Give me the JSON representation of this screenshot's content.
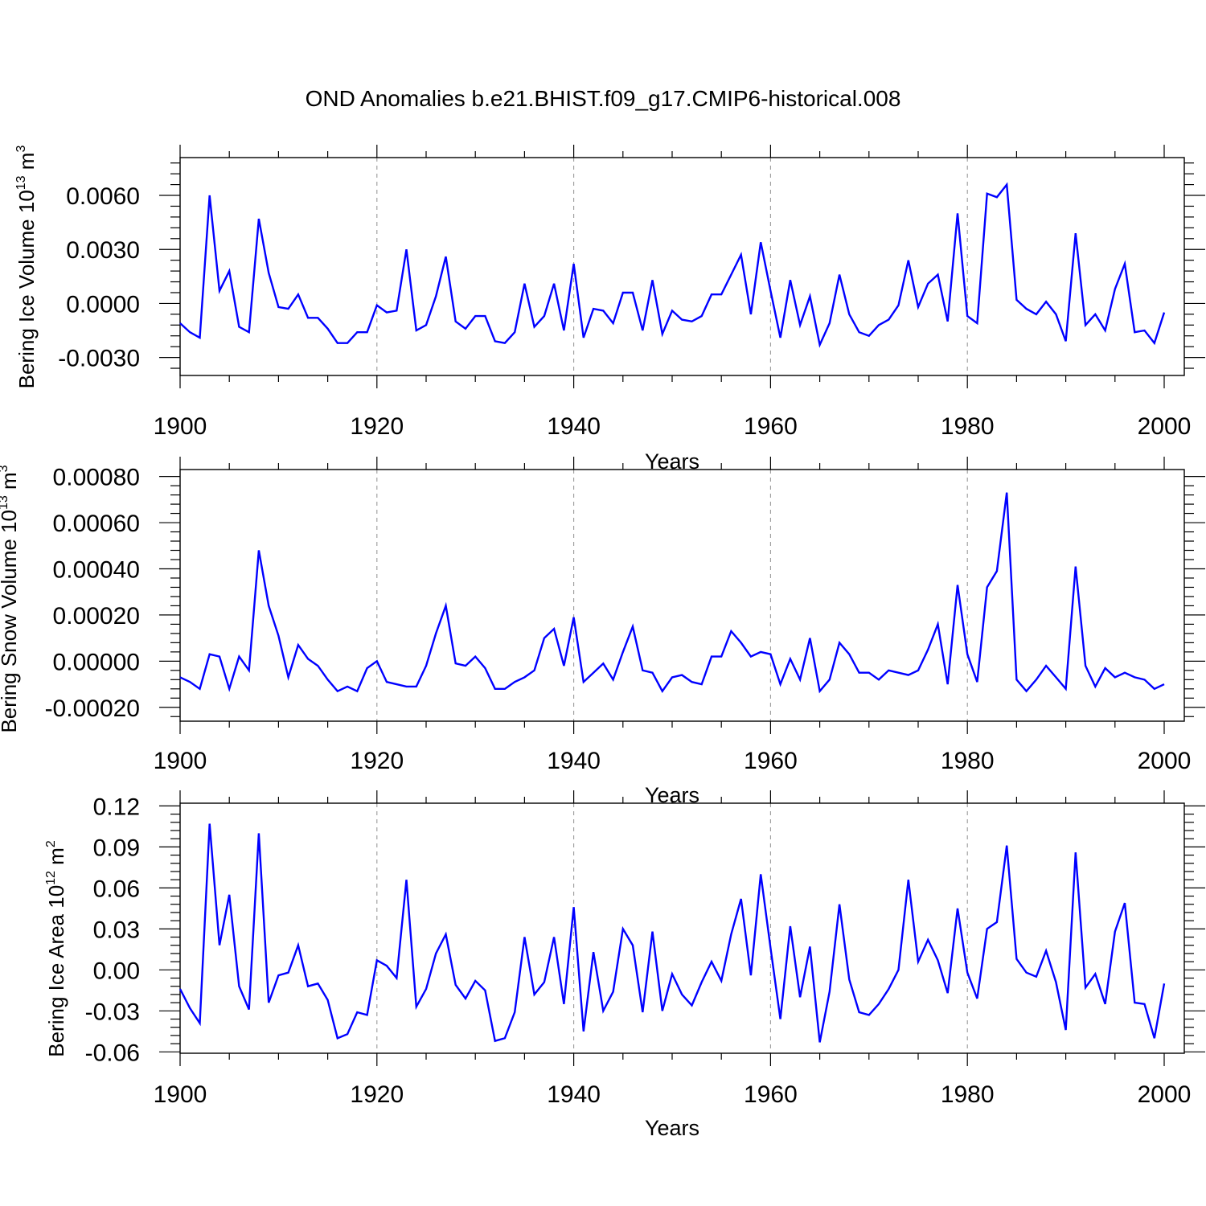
{
  "title": "OND Anomalies b.e21.BHIST.f09_g17.CMIP6-historical.008",
  "colors": {
    "series": "#0000ff",
    "frame": "#000000",
    "grid": "#999999"
  },
  "chart_data": [
    {
      "type": "line",
      "name": "ice-volume",
      "ylabel_main": "Bering Ice Volume 10",
      "ylabel_exp": "13",
      "ylabel_unit": " m",
      "ylabel_unit_exp": "3",
      "xlabel": "Years",
      "xlim": [
        1900,
        2000
      ],
      "ylim": [
        -0.004,
        0.0081
      ],
      "xticks": [
        1900,
        1920,
        1940,
        1960,
        1980,
        2000
      ],
      "xtick_labels": [
        "1900",
        "1920",
        "1940",
        "1960",
        "1980",
        "2000"
      ],
      "yticks": [
        -0.003,
        0.0,
        0.003,
        0.006
      ],
      "ytick_labels": [
        "-0.0030",
        "0.0000",
        "0.0030",
        "0.0060"
      ],
      "grid_x": [
        1920,
        1940,
        1960,
        1980
      ],
      "x_start": 1900,
      "values": [
        -0.0011,
        -0.0016,
        -0.0019,
        0.006,
        0.0007,
        0.0018,
        -0.0013,
        -0.0016,
        0.0047,
        0.0017,
        -0.0002,
        -0.0003,
        0.0005,
        -0.0008,
        -0.0008,
        -0.0014,
        -0.0022,
        -0.0022,
        -0.0016,
        -0.0016,
        -0.0001,
        -0.0005,
        -0.0004,
        0.003,
        -0.0015,
        -0.0012,
        0.0004,
        0.0026,
        -0.001,
        -0.0014,
        -0.0007,
        -0.0007,
        -0.0021,
        -0.0022,
        -0.0016,
        0.0011,
        -0.0013,
        -0.0007,
        0.0011,
        -0.0015,
        0.0022,
        -0.0019,
        -0.0003,
        -0.0004,
        -0.0011,
        0.0006,
        0.0006,
        -0.0015,
        0.0013,
        -0.0017,
        -0.0004,
        -0.0009,
        -0.001,
        -0.0007,
        0.0005,
        0.0005,
        0.0016,
        0.0027,
        -0.0006,
        0.0034,
        0.0007,
        -0.0019,
        0.0013,
        -0.0012,
        0.0004,
        -0.0023,
        -0.0011,
        0.0016,
        -0.0006,
        -0.0016,
        -0.0018,
        -0.0012,
        -0.0009,
        -0.0001,
        0.0024,
        -0.0002,
        0.0011,
        0.0016,
        -0.001,
        0.005,
        -0.0007,
        -0.0011,
        0.0061,
        0.0059,
        0.0066,
        0.0002,
        -0.0003,
        -0.0006,
        0.0001,
        -0.0006,
        -0.0021,
        0.0039,
        -0.0012,
        -0.0006,
        -0.0015,
        0.0008,
        0.0022,
        -0.0016,
        -0.0015,
        -0.0022,
        -0.0005
      ]
    },
    {
      "type": "line",
      "name": "snow-volume",
      "ylabel_main": "Bering Snow Volume 10",
      "ylabel_exp": "13",
      "ylabel_unit": " m",
      "ylabel_unit_exp": "3",
      "xlabel": "Years",
      "xlim": [
        1900,
        2000
      ],
      "ylim": [
        -0.00026,
        0.00083
      ],
      "xticks": [
        1900,
        1920,
        1940,
        1960,
        1980,
        2000
      ],
      "xtick_labels": [
        "1900",
        "1920",
        "1940",
        "1960",
        "1980",
        "2000"
      ],
      "yticks": [
        -0.0002,
        0.0,
        0.0002,
        0.0004,
        0.0006,
        0.0008
      ],
      "ytick_labels": [
        "-0.00020",
        "0.00000",
        "0.00020",
        "0.00040",
        "0.00060",
        "0.00080"
      ],
      "grid_x": [
        1920,
        1940,
        1960,
        1980
      ],
      "x_start": 1900,
      "values": [
        -7e-05,
        -9e-05,
        -0.00012,
        3e-05,
        2e-05,
        -0.00012,
        2e-05,
        -4e-05,
        0.00048,
        0.00024,
        0.00011,
        -7e-05,
        7e-05,
        1e-05,
        -2e-05,
        -8e-05,
        -0.00013,
        -0.00011,
        -0.00013,
        -3e-05,
        0.0,
        -9e-05,
        -0.0001,
        -0.00011,
        -0.00011,
        -2e-05,
        0.00012,
        0.00024,
        -1e-05,
        -2e-05,
        2e-05,
        -3e-05,
        -0.00012,
        -0.00012,
        -9e-05,
        -7e-05,
        -4e-05,
        0.0001,
        0.00014,
        -2e-05,
        0.00019,
        -9e-05,
        -5e-05,
        -1e-05,
        -8e-05,
        4e-05,
        0.00015,
        -4e-05,
        -5e-05,
        -0.00013,
        -7e-05,
        -6e-05,
        -9e-05,
        -0.0001,
        2e-05,
        2e-05,
        0.00013,
        8e-05,
        2e-05,
        4e-05,
        3e-05,
        -0.0001,
        1e-05,
        -8e-05,
        0.0001,
        -0.00013,
        -8e-05,
        8e-05,
        3e-05,
        -5e-05,
        -5e-05,
        -8e-05,
        -4e-05,
        -5e-05,
        -6e-05,
        -4e-05,
        5e-05,
        0.00016,
        -0.0001,
        0.00033,
        3e-05,
        -9e-05,
        0.00032,
        0.00039,
        0.00073,
        -8e-05,
        -0.00013,
        -8e-05,
        -2e-05,
        -7e-05,
        -0.00012,
        0.00041,
        -2e-05,
        -0.00011,
        -3e-05,
        -7e-05,
        -5e-05,
        -7e-05,
        -8e-05,
        -0.00012,
        -0.0001
      ]
    },
    {
      "type": "line",
      "name": "ice-area",
      "ylabel_main": "Bering Ice Area 10",
      "ylabel_exp": "12",
      "ylabel_unit": " m",
      "ylabel_unit_exp": "2",
      "xlabel": "Years",
      "xlim": [
        1900,
        2000
      ],
      "ylim": [
        -0.061,
        0.122
      ],
      "xticks": [
        1900,
        1920,
        1940,
        1960,
        1980,
        2000
      ],
      "xtick_labels": [
        "1900",
        "1920",
        "1940",
        "1960",
        "1980",
        "2000"
      ],
      "yticks": [
        -0.06,
        -0.03,
        0.0,
        0.03,
        0.06,
        0.09,
        0.12
      ],
      "ytick_labels": [
        "-0.06",
        "-0.03",
        "0.00",
        "0.03",
        "0.06",
        "0.09",
        "0.12"
      ],
      "grid_x": [
        1920,
        1940,
        1960,
        1980
      ],
      "x_start": 1900,
      "values": [
        -0.014,
        -0.028,
        -0.039,
        0.107,
        0.018,
        0.055,
        -0.012,
        -0.029,
        0.1,
        -0.024,
        -0.004,
        -0.002,
        0.018,
        -0.012,
        -0.01,
        -0.022,
        -0.05,
        -0.047,
        -0.031,
        -0.033,
        0.007,
        0.003,
        -0.006,
        0.066,
        -0.027,
        -0.014,
        0.012,
        0.026,
        -0.011,
        -0.021,
        -0.008,
        -0.015,
        -0.052,
        -0.05,
        -0.031,
        0.024,
        -0.018,
        -0.009,
        0.024,
        -0.025,
        0.046,
        -0.045,
        0.013,
        -0.03,
        -0.016,
        0.03,
        0.018,
        -0.031,
        0.028,
        -0.03,
        -0.003,
        -0.018,
        -0.026,
        -0.009,
        0.006,
        -0.008,
        0.026,
        0.052,
        -0.004,
        0.07,
        0.016,
        -0.036,
        0.032,
        -0.02,
        0.017,
        -0.053,
        -0.016,
        0.048,
        -0.007,
        -0.031,
        -0.033,
        -0.025,
        -0.014,
        0.0,
        0.066,
        0.006,
        0.022,
        0.007,
        -0.017,
        0.045,
        -0.002,
        -0.021,
        0.03,
        0.035,
        0.091,
        0.008,
        -0.002,
        -0.005,
        0.014,
        -0.009,
        -0.044,
        0.086,
        -0.013,
        -0.003,
        -0.025,
        0.028,
        0.049,
        -0.024,
        -0.025,
        -0.05,
        -0.01
      ]
    }
  ]
}
